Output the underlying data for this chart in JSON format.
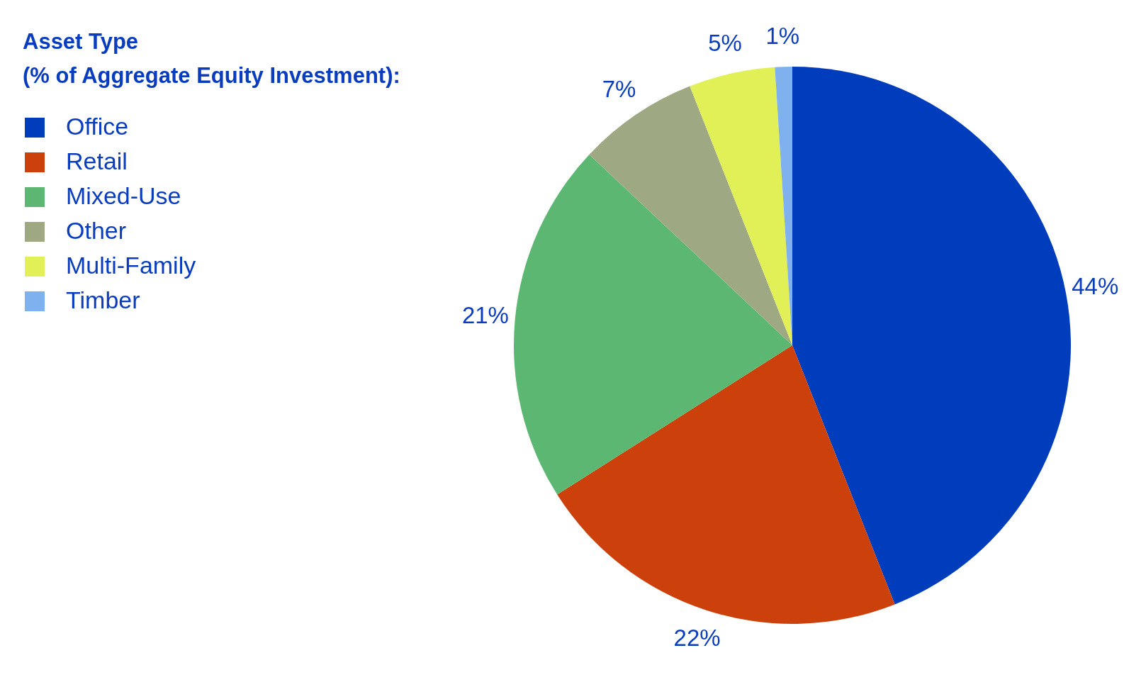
{
  "chart_data": {
    "type": "pie",
    "legend_title": "Asset Type\n(% of Aggregate Equity Investment):",
    "categories": [
      "Office",
      "Retail",
      "Mixed-Use",
      "Other",
      "Multi-Family",
      "Timber"
    ],
    "values": [
      44,
      22,
      21,
      7,
      5,
      1
    ],
    "colors": [
      "#003dbd",
      "#cc400c",
      "#5bb772",
      "#9ea882",
      "#e1f056",
      "#7fb1ef"
    ],
    "value_labels": [
      "44%",
      "22%",
      "21%",
      "7%",
      "5%",
      "1%"
    ],
    "legend": "top left"
  }
}
